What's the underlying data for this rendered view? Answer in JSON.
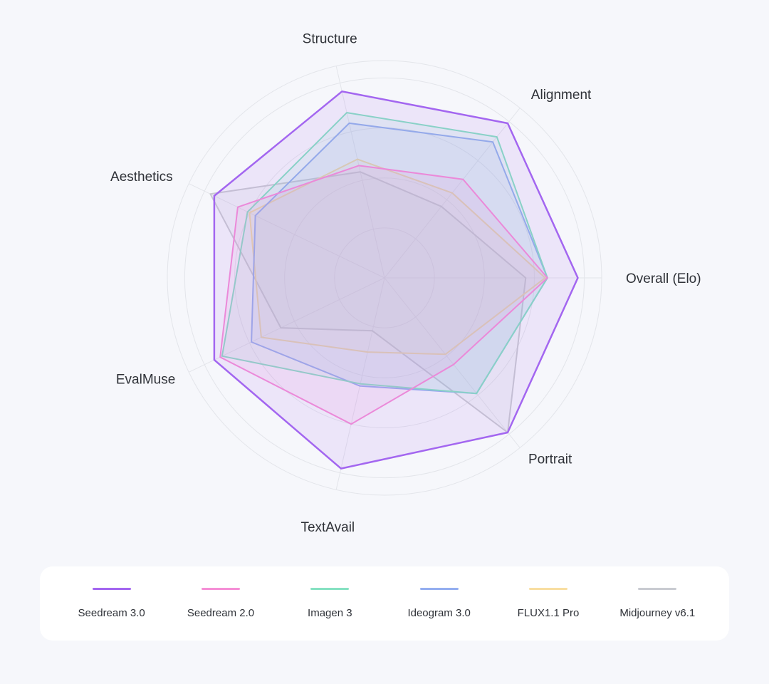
{
  "chart_data": {
    "type": "radar",
    "title": "",
    "axes": [
      "Overall (Elo)",
      "Alignment",
      "Structure",
      "Aesthetics",
      "EvalMuse",
      "TextAvail",
      "Portrait"
    ],
    "rlim": [
      0,
      1
    ],
    "grid": true,
    "legend_position": "bottom",
    "series": [
      {
        "name": "Seedream 3.0",
        "color": "#a366f0",
        "values": [
          0.89,
          0.91,
          0.88,
          0.87,
          0.87,
          0.9,
          0.91
        ]
      },
      {
        "name": "Seedream 2.0",
        "color": "#f58fd6",
        "values": [
          0.75,
          0.58,
          0.53,
          0.75,
          0.84,
          0.69,
          0.51
        ]
      },
      {
        "name": "Imagen 3",
        "color": "#86e1c2",
        "values": [
          0.75,
          0.83,
          0.78,
          0.7,
          0.83,
          0.5,
          0.68
        ]
      },
      {
        "name": "Ideogram 3.0",
        "color": "#94aef0",
        "values": [
          0.75,
          0.8,
          0.73,
          0.66,
          0.68,
          0.51,
          0.68
        ]
      },
      {
        "name": "FLUX1.1 Pro",
        "color": "#f8dea1",
        "values": [
          0.74,
          0.5,
          0.56,
          0.69,
          0.63,
          0.35,
          0.45
        ]
      },
      {
        "name": "Midjourney v6.1",
        "color": "#c9cbd1",
        "values": [
          0.65,
          0.42,
          0.5,
          0.89,
          0.53,
          0.25,
          0.91
        ]
      }
    ]
  }
}
